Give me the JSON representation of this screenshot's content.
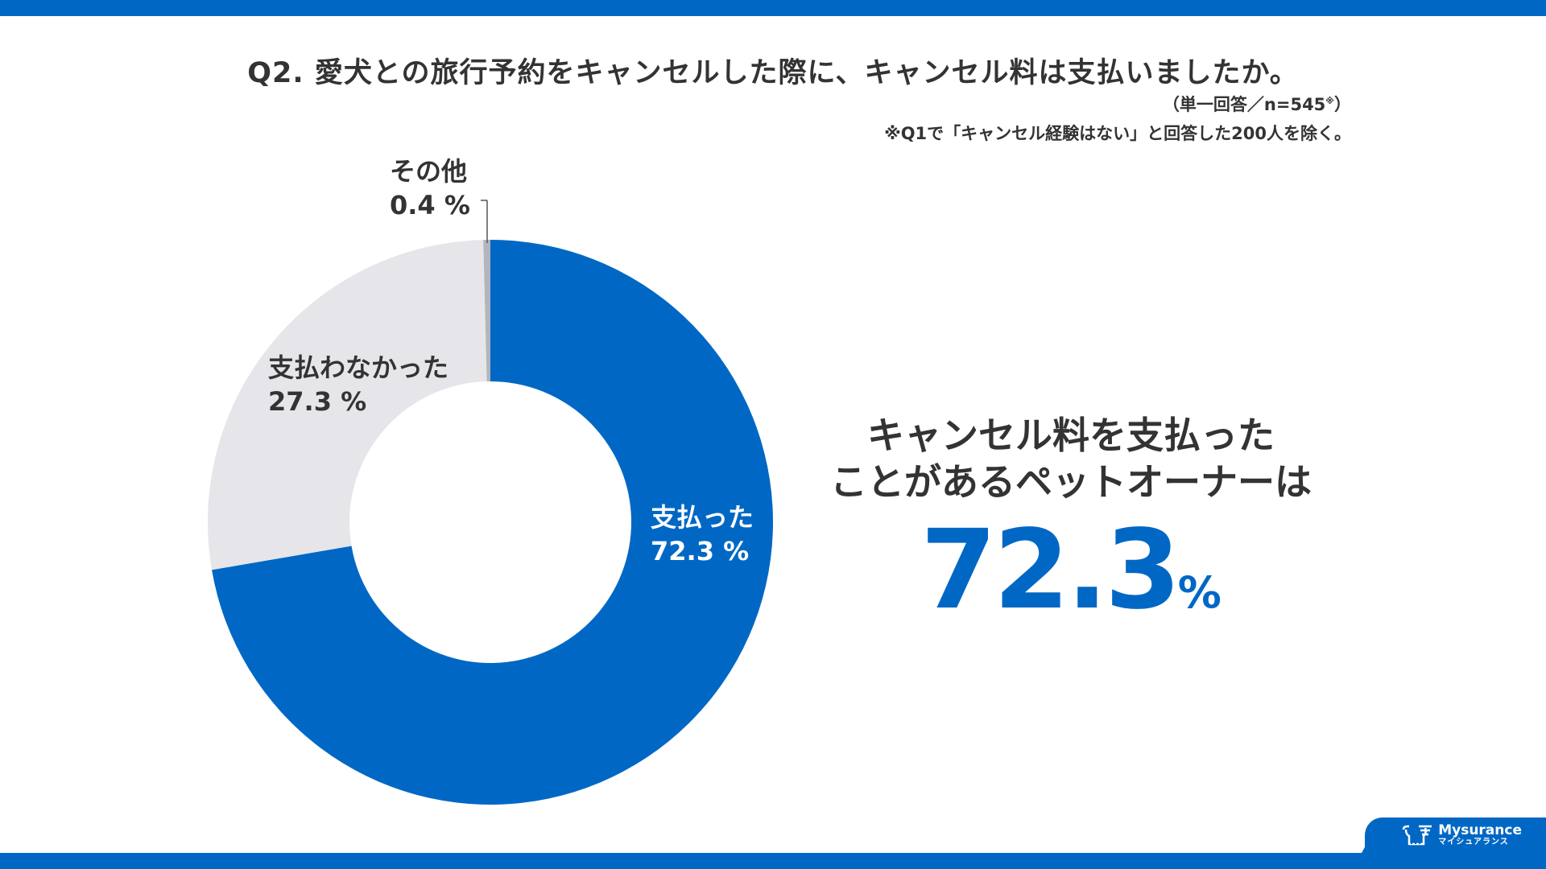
{
  "header": {
    "title": "Q2. 愛犬との旅行予約をキャンセルした際に、キャンセル料は支払いましたか。",
    "sample_note": "（単一回答／n=545",
    "sample_mark": "※",
    "sample_close": "）",
    "footnote": "※Q1で「キャンセル経験はない」と回答した200人を除く。"
  },
  "chart_data": {
    "type": "pie",
    "variant": "donut",
    "slices": [
      {
        "name": "支払った",
        "value": 72.3,
        "label": "72.3 %",
        "color": "#0068c4"
      },
      {
        "name": "支払わなかった",
        "value": 27.3,
        "label": "27.3 %",
        "color": "#e6e6ea"
      },
      {
        "name": "その他",
        "value": 0.4,
        "label": "0.4 %",
        "color": "#b4b4bc"
      }
    ],
    "start": "top",
    "direction": "clockwise"
  },
  "highlight": {
    "line1": "キャンセル料を支払った",
    "line2": "ことがあるペットオーナーは",
    "value": "72.3",
    "unit": "%"
  },
  "brand": {
    "name": "Mysurance",
    "kana": "マイシュアランス",
    "color": "#0068c4"
  }
}
